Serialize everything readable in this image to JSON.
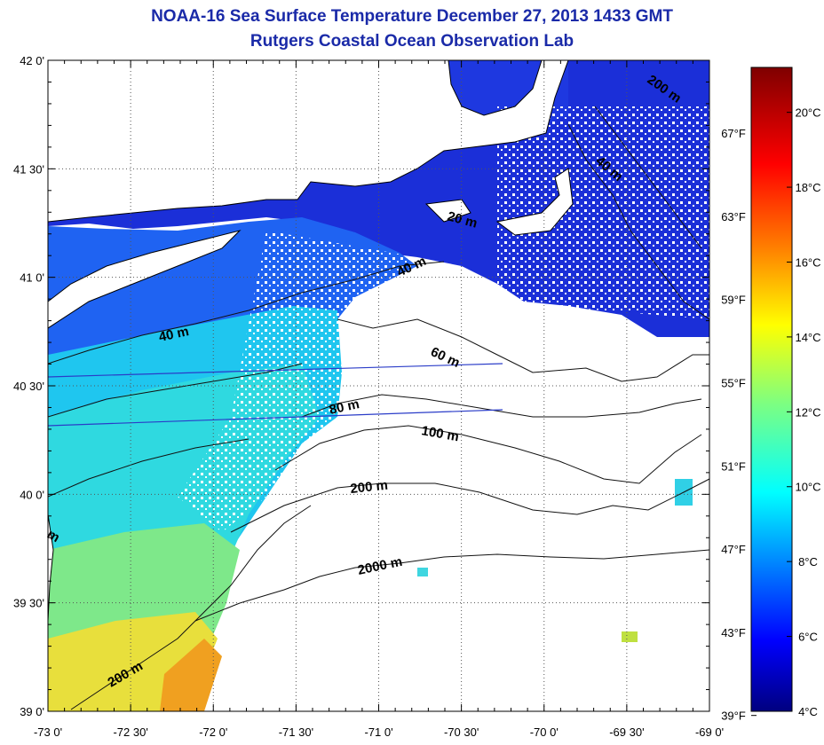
{
  "header": {
    "title": "NOAA-16 Sea Surface Temperature December 27, 2013 1433 GMT",
    "subtitle": "Rutgers Coastal Ocean Observation Lab"
  },
  "map": {
    "lon_range": [
      -73.0,
      -69.0
    ],
    "lat_range": [
      39.0,
      42.0
    ],
    "grid": "dotted",
    "lon_ticks": [
      {
        "value": -73.0,
        "label": "-73 0'"
      },
      {
        "value": -72.5,
        "label": "-72 30'"
      },
      {
        "value": -72.0,
        "label": "-72 0'"
      },
      {
        "value": -71.5,
        "label": "-71 30'"
      },
      {
        "value": -71.0,
        "label": "-71 0'"
      },
      {
        "value": -70.5,
        "label": "-70 30'"
      },
      {
        "value": -70.0,
        "label": "-70 0'"
      },
      {
        "value": -69.5,
        "label": "-69 30'"
      },
      {
        "value": -69.0,
        "label": "-69 0'"
      }
    ],
    "lat_ticks": [
      {
        "value": 42.0,
        "label": "42 0'"
      },
      {
        "value": 41.5,
        "label": "41 30'"
      },
      {
        "value": 41.0,
        "label": "41 0'"
      },
      {
        "value": 40.5,
        "label": "40 30'"
      },
      {
        "value": 40.0,
        "label": "40 0'"
      },
      {
        "value": 39.5,
        "label": "39 30'"
      },
      {
        "value": 39.0,
        "label": "39 0'"
      }
    ],
    "fahrenheit_ticks": [
      {
        "value": 39,
        "label": "39°F"
      },
      {
        "value": 43,
        "label": "43°F"
      },
      {
        "value": 47,
        "label": "47°F"
      },
      {
        "value": 51,
        "label": "51°F"
      },
      {
        "value": 55,
        "label": "55°F"
      },
      {
        "value": 59,
        "label": "59°F"
      },
      {
        "value": 63,
        "label": "63°F"
      },
      {
        "value": 67,
        "label": "67°F"
      }
    ],
    "isobath_labels": [
      "200 m",
      "40 m",
      "20 m",
      "40 m",
      "40 m",
      "60 m",
      "80 m",
      "100 m",
      "200 m",
      "m",
      "2000 m",
      "200 m"
    ],
    "colors": {
      "land": "#ffffff",
      "no_data": "#ffffff",
      "title": "#1a2aa8"
    }
  },
  "colorbar": {
    "unit": "°C",
    "range": [
      4,
      21.2
    ],
    "ticks": [
      {
        "value": 4,
        "label": "4°C"
      },
      {
        "value": 6,
        "label": "6°C"
      },
      {
        "value": 8,
        "label": "8°C"
      },
      {
        "value": 10,
        "label": "10°C"
      },
      {
        "value": 12,
        "label": "12°C"
      },
      {
        "value": 14,
        "label": "14°C"
      },
      {
        "value": 16,
        "label": "16°C"
      },
      {
        "value": 18,
        "label": "18°C"
      },
      {
        "value": 20,
        "label": "20°C"
      }
    ],
    "colormap": [
      "#00007f",
      "#0000ff",
      "#007fff",
      "#00ffff",
      "#7fff7f",
      "#ffff00",
      "#ff7f00",
      "#ff0000",
      "#7f0000"
    ]
  }
}
